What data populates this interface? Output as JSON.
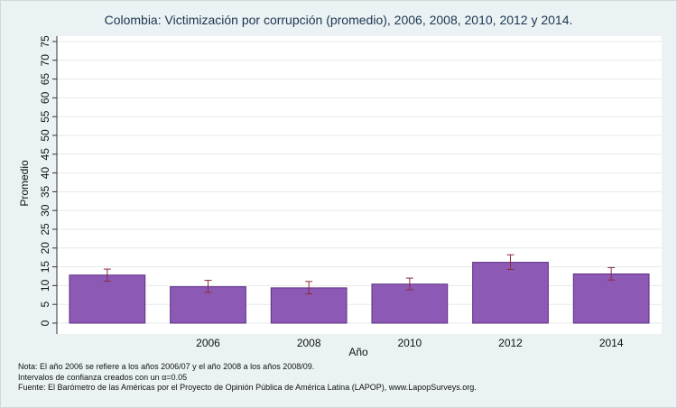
{
  "chart_data": {
    "type": "bar",
    "title": "Colombia: Victimización por corrupción (promedio), 2006, 2008, 2010, 2012 y 2014.",
    "xlabel": "Año",
    "ylabel": "Promedio",
    "categories": [
      "",
      "2006",
      "2008",
      "2010",
      "2012",
      "2014"
    ],
    "values": [
      12.8,
      9.7,
      9.4,
      10.4,
      16.2,
      13.1
    ],
    "ci_low": [
      11.2,
      8.2,
      7.8,
      8.9,
      14.3,
      11.5
    ],
    "ci_high": [
      14.4,
      11.4,
      11.1,
      12.0,
      18.2,
      14.8
    ],
    "ylim": [
      0,
      75
    ],
    "yticks": [
      "0",
      "5",
      "10",
      "15",
      "20",
      "25",
      "30",
      "35",
      "40",
      "45",
      "50",
      "55",
      "60",
      "65",
      "70",
      "75"
    ],
    "bar_color": "#8c59b4",
    "errorbar_color": "#8b2b3a",
    "grid": true
  },
  "notes": [
    "Nota: El año 2006 se refiere a los años 2006/07 y el año 2008 a los años 2008/09.",
    "Intervalos de confianza creados con un α=0.05",
    "Fuente: El Barómetro de las Américas por el Proyecto de Opinión Pública de América Latina (LAPOP), www.LapopSurveys.org."
  ]
}
